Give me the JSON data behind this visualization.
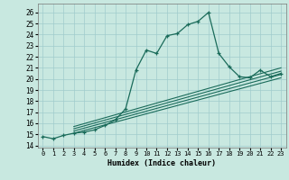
{
  "xlabel": "Humidex (Indice chaleur)",
  "bg_color": "#c8e8e0",
  "grid_color": "#a0cccc",
  "line_color": "#1a6b5a",
  "xlim": [
    -0.5,
    23.5
  ],
  "ylim": [
    13.8,
    26.8
  ],
  "xticks": [
    0,
    1,
    2,
    3,
    4,
    5,
    6,
    7,
    8,
    9,
    10,
    11,
    12,
    13,
    14,
    15,
    16,
    17,
    18,
    19,
    20,
    21,
    22,
    23
  ],
  "yticks": [
    14,
    15,
    16,
    17,
    18,
    19,
    20,
    21,
    22,
    23,
    24,
    25,
    26
  ],
  "main_y": [
    14.8,
    14.6,
    14.9,
    15.1,
    15.2,
    15.4,
    15.8,
    16.3,
    17.3,
    20.8,
    22.6,
    22.3,
    23.9,
    24.1,
    24.9,
    25.2,
    26.0,
    22.3,
    21.1,
    20.2,
    20.1,
    20.8,
    20.2,
    20.5
  ],
  "reg_lines_start_x": 3,
  "reg_lines": [
    {
      "x0": 3,
      "y0": 15.1,
      "x1": 23,
      "y1": 20.1
    },
    {
      "x0": 3,
      "y0": 15.3,
      "x1": 23,
      "y1": 20.4
    },
    {
      "x0": 3,
      "y0": 15.5,
      "x1": 23,
      "y1": 20.7
    },
    {
      "x0": 3,
      "y0": 15.7,
      "x1": 23,
      "y1": 21.0
    }
  ]
}
